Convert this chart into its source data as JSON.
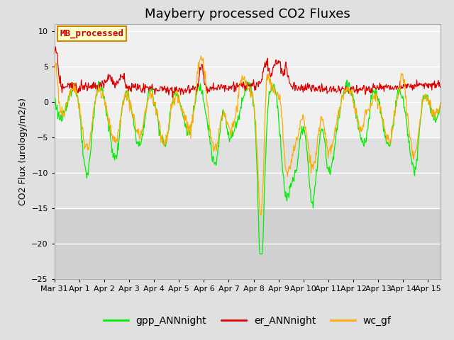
{
  "title": "Mayberry processed CO2 Fluxes",
  "ylabel": "CO2 Flux (urology/m2/s)",
  "ylim": [
    -25,
    11
  ],
  "yticks": [
    -25,
    -20,
    -15,
    -10,
    -5,
    0,
    5,
    10
  ],
  "legend_label": "MB_processed",
  "legend_facecolor": "#ffffcc",
  "legend_edgecolor": "#cc8800",
  "legend_textcolor": "#cc0000",
  "series_labels": [
    "gpp_ANNnight",
    "er_ANNnight",
    "wc_gf"
  ],
  "series_colors": [
    "#00ee00",
    "#dd0000",
    "#ffaa00"
  ],
  "background_color": "#e0e0e0",
  "band1_color": "#f0f0f0",
  "band2_color": "#e0e0e0",
  "band3_color": "#d0d0d0",
  "grid_color": "#ffffff",
  "xticklabels": [
    "Mar 31",
    "Apr 1",
    "Apr 2",
    "Apr 3",
    "Apr 4",
    "Apr 5",
    "Apr 6",
    "Apr 7",
    "Apr 8",
    "Apr 9",
    "Apr 10",
    "Apr 11",
    "Apr 12",
    "Apr 13",
    "Apr 14",
    "Apr 15"
  ],
  "xtick_positions": [
    0,
    1,
    2,
    3,
    4,
    5,
    6,
    7,
    8,
    9,
    10,
    11,
    12,
    13,
    14,
    15
  ],
  "title_fontsize": 13,
  "axis_fontsize": 9,
  "tick_fontsize": 8,
  "legend_entry_fontsize": 10,
  "linewidth": 0.9
}
